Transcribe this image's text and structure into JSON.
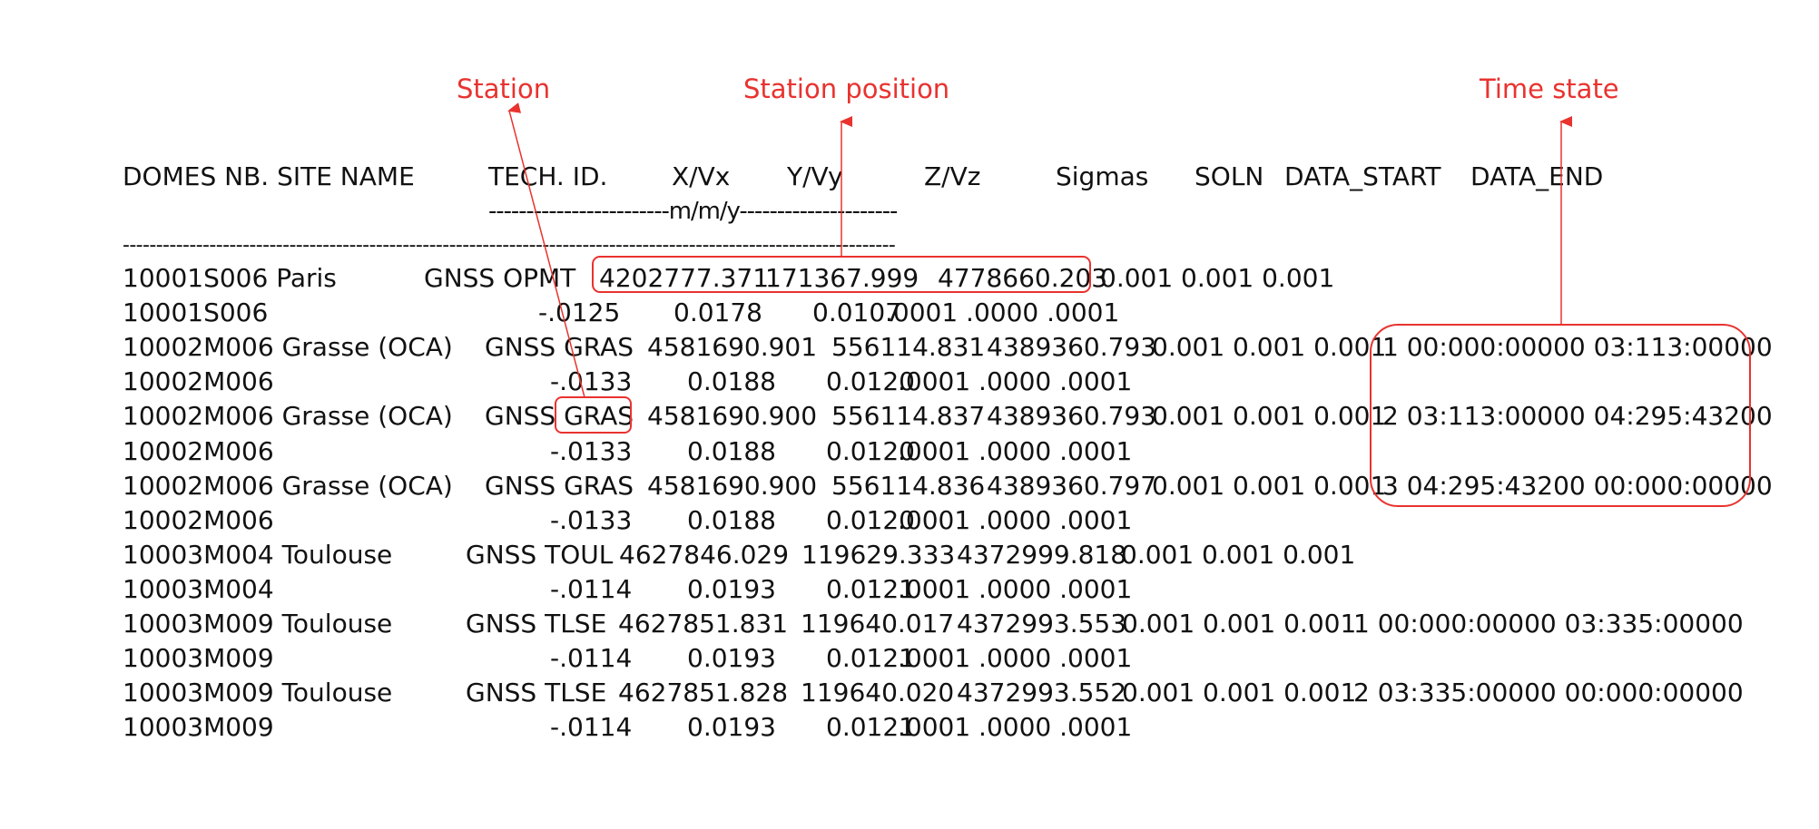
{
  "annotations": {
    "station": "Station",
    "station_position": "Station position",
    "time_state": "Time state",
    "color": "#e8332f"
  },
  "header": {
    "domes": "DOMES NB. SITE NAME",
    "tech_id": "TECH. ID.",
    "x": "X/Vx",
    "y": "Y/Vy",
    "z": "Z/Vz",
    "sigmas": "Sigmas",
    "soln": "SOLN",
    "data_start": "DATA_START",
    "data_end": "DATA_END",
    "units": "------------------------m/m/y---------------------",
    "separator": "--------------------------------------------------------------------------------------------------------------------"
  },
  "rows": [
    {
      "id": "10001S006 Paris",
      "tech": "GNSS OPMT",
      "x": "4202777.371",
      "y": "171367.999",
      "z": "4778660.203",
      "sig": "0.001 0.001 0.001",
      "soln": ""
    },
    {
      "id": "10001S006",
      "tech": "",
      "x": "-.0125",
      "y": "0.0178",
      "z": "0.0107",
      "sig": ".0001 .0000 .0001",
      "soln": ""
    },
    {
      "id": "10002M006 Grasse (OCA)",
      "tech": "GNSS GRAS",
      "x": "4581690.901",
      "y": "556114.831",
      "z": "4389360.793",
      "sig": "0.001 0.001 0.001",
      "soln": "1 00:000:00000 03:113:00000"
    },
    {
      "id": "10002M006",
      "tech": "",
      "x": "-.0133",
      "y": "0.0188",
      "z": "0.0120",
      "sig": ".0001 .0000 .0001",
      "soln": ""
    },
    {
      "id": "10002M006 Grasse (OCA)",
      "tech": "GNSS GRAS",
      "x": "4581690.900",
      "y": "556114.837",
      "z": "4389360.793",
      "sig": "0.001 0.001 0.001",
      "soln": "2 03:113:00000 04:295:43200"
    },
    {
      "id": "10002M006",
      "tech": "",
      "x": "-.0133",
      "y": "0.0188",
      "z": "0.0120",
      "sig": ".0001 .0000 .0001",
      "soln": ""
    },
    {
      "id": "10002M006 Grasse (OCA)",
      "tech": "GNSS GRAS",
      "x": "4581690.900",
      "y": "556114.836",
      "z": "4389360.797",
      "sig": "0.001 0.001 0.001",
      "soln": "3 04:295:43200 00:000:00000"
    },
    {
      "id": "10002M006",
      "tech": "",
      "x": "-.0133",
      "y": "0.0188",
      "z": "0.0120",
      "sig": ".0001 .0000 .0001",
      "soln": ""
    },
    {
      "id": "10003M004 Toulouse",
      "tech": "GNSS TOUL",
      "x": "4627846.029",
      "y": "119629.333",
      "z": "4372999.818",
      "sig": "0.001 0.001 0.001",
      "soln": ""
    },
    {
      "id": "10003M004",
      "tech": "",
      "x": "-.0114",
      "y": "0.0193",
      "z": "0.0121",
      "sig": ".0001 .0000 .0001",
      "soln": ""
    },
    {
      "id": "10003M009 Toulouse",
      "tech": "GNSS TLSE",
      "x": "4627851.831",
      "y": "119640.017",
      "z": "4372993.553",
      "sig": "0.001 0.001 0.001",
      "soln": "1 00:000:00000 03:335:00000"
    },
    {
      "id": "10003M009",
      "tech": "",
      "x": "-.0114",
      "y": "0.0193",
      "z": "0.0121",
      "sig": ".0001 .0000 .0001",
      "soln": ""
    },
    {
      "id": "10003M009 Toulouse",
      "tech": "GNSS TLSE",
      "x": "4627851.828",
      "y": "119640.020",
      "z": "4372993.552",
      "sig": "0.001 0.001 0.001",
      "soln": "2 03:335:00000 00:000:00000"
    },
    {
      "id": "10003M009",
      "tech": "",
      "x": "-.0114",
      "y": "0.0193",
      "z": "0.0121",
      "sig": ".0001 .0000 .0001",
      "soln": ""
    }
  ]
}
